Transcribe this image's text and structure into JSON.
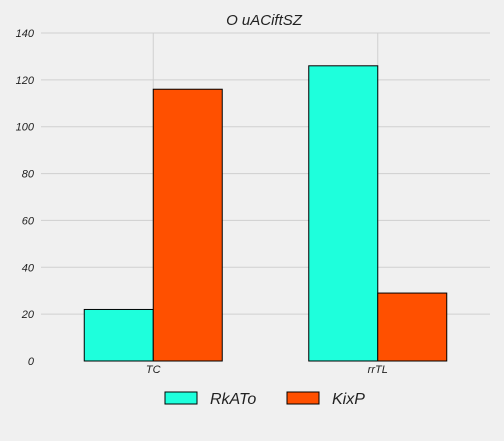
{
  "chart_data": {
    "type": "bar",
    "title": "O uACiftSZ",
    "xlabel": "",
    "ylabel": "",
    "categories": [
      "TC",
      "rrTL"
    ],
    "series": [
      {
        "name": "RkATo",
        "values": [
          22,
          126
        ],
        "color": "#1effdc"
      },
      {
        "name": "KixP",
        "values": [
          116,
          29
        ],
        "color": "#ff5000"
      }
    ],
    "ylim": [
      0,
      140
    ],
    "yticks": [
      0,
      20,
      40,
      60,
      80,
      100,
      120,
      140
    ],
    "grid": true,
    "legend_position": "bottom-center"
  }
}
